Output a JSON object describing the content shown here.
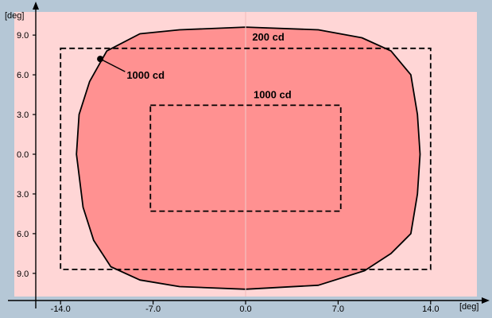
{
  "chart_data": {
    "type": "diagram",
    "units": {
      "x": "[deg]",
      "y": "[deg]"
    },
    "xlim": [
      -17.5,
      17.5
    ],
    "ylim": [
      -10.75,
      10.75
    ],
    "x_ticks": [
      {
        "value": -14,
        "label": "-14.0"
      },
      {
        "value": -7,
        "label": "-7.0"
      },
      {
        "value": 0,
        "label": "0.0"
      },
      {
        "value": 7,
        "label": "7.0"
      },
      {
        "value": 14,
        "label": "14.0"
      }
    ],
    "y_ticks": [
      {
        "value": 9,
        "label": "9.0"
      },
      {
        "value": 6,
        "label": "6.0"
      },
      {
        "value": 3,
        "label": "3.0"
      },
      {
        "value": 0,
        "label": "0.0"
      },
      {
        "value": -3,
        "label": "3.0"
      },
      {
        "value": -6,
        "label": "6.0"
      },
      {
        "value": -9,
        "label": "9.0"
      }
    ],
    "colors": {
      "background": "#b5c7d6",
      "plot_area": "#ffd6d6",
      "beam_fill": "#ff9191",
      "outline": "#000000",
      "center_line": "#f2c0c0",
      "axis": "#000000"
    },
    "zones": [
      {
        "label": "200 cd",
        "x_min": -14,
        "x_max": 14,
        "y_min": -8.7,
        "y_max": 8.0
      },
      {
        "label": "1000 cd",
        "x_min": -7.2,
        "x_max": 7.2,
        "y_min": -4.3,
        "y_max": 3.7
      }
    ],
    "beam_contour": [
      [
        -8.0,
        9.1
      ],
      [
        -5.0,
        9.4
      ],
      [
        0.0,
        9.6
      ],
      [
        5.5,
        9.4
      ],
      [
        8.8,
        8.8
      ],
      [
        11.0,
        7.8
      ],
      [
        12.5,
        6.0
      ],
      [
        13.0,
        3.0
      ],
      [
        13.2,
        0.0
      ],
      [
        13.0,
        -3.0
      ],
      [
        12.5,
        -6.0
      ],
      [
        11.0,
        -7.5
      ],
      [
        9.0,
        -8.8
      ],
      [
        5.5,
        -9.9
      ],
      [
        0.0,
        -10.2
      ],
      [
        -5.0,
        -10.0
      ],
      [
        -8.0,
        -9.5
      ],
      [
        -10.2,
        -8.5
      ],
      [
        -11.5,
        -6.5
      ],
      [
        -12.3,
        -4.0
      ],
      [
        -12.8,
        0.0
      ],
      [
        -12.6,
        3.0
      ],
      [
        -11.8,
        5.5
      ],
      [
        -10.5,
        7.8
      ]
    ],
    "annotation": {
      "label": "1000 cd",
      "point": [
        -11.0,
        7.2
      ],
      "label_at": [
        -9.0,
        6.0
      ]
    }
  }
}
